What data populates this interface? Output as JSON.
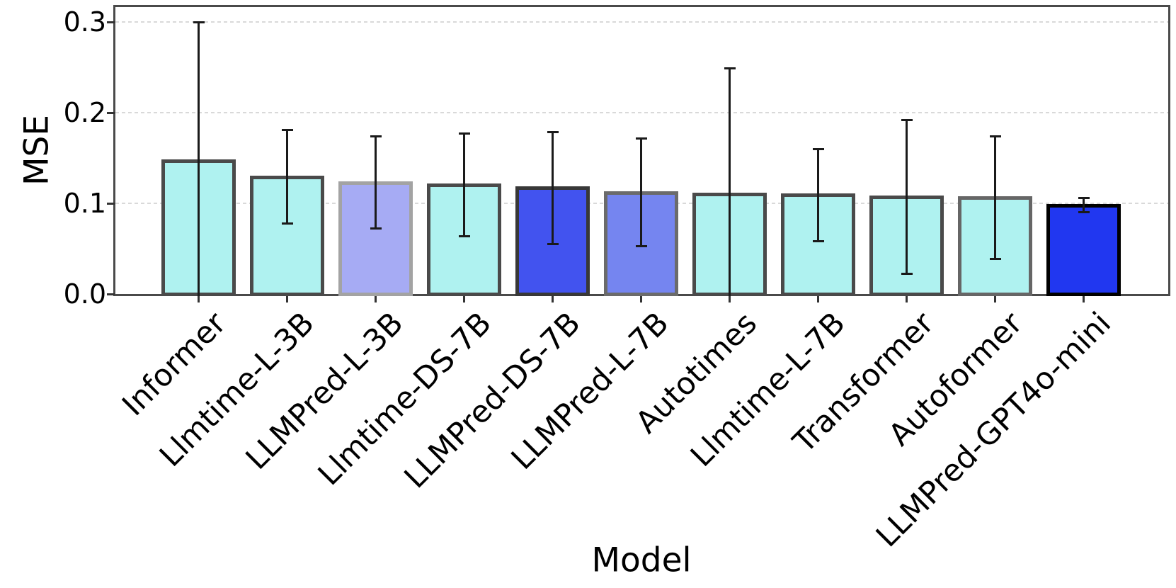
{
  "chart_data": {
    "type": "bar",
    "title": "",
    "xlabel": "Model",
    "ylabel": "MSE",
    "ylim": [
      0,
      0.316
    ],
    "yticks": [
      0.0,
      0.1,
      0.2,
      0.3
    ],
    "ytick_labels": [
      "0.0",
      "0.1",
      "0.2",
      "0.3"
    ],
    "grid": "horizontal-dashed",
    "legend": "none",
    "categories": [
      "Informer",
      "Llmtime-L-3B",
      "LLMPred-L-3B",
      "Llmtime-DS-7B",
      "LLMPred-DS-7B",
      "LLMPred-L-7B",
      "Autotimes",
      "Llmtime-L-7B",
      "Transformer",
      "Autoformer",
      "LLMPred-GPT4o-mini"
    ],
    "values": [
      0.147,
      0.129,
      0.123,
      0.12,
      0.117,
      0.112,
      0.11,
      0.109,
      0.107,
      0.106,
      0.098
    ],
    "errors": [
      0.153,
      0.052,
      0.051,
      0.057,
      0.062,
      0.06,
      0.139,
      0.051,
      0.085,
      0.068,
      0.008
    ],
    "bar_colors": [
      "#AFF2F0",
      "#AFF2F0",
      "#A6ABF4",
      "#AFF2F0",
      "#4253EF",
      "#7585F0",
      "#AFF2F0",
      "#AFF2F0",
      "#AFF2F0",
      "#AFF2F0",
      "#2137F0"
    ],
    "edge_colors": [
      "#4A4A4A",
      "#4A4A4A",
      "#A3A3A3",
      "#4A4A4A",
      "#383838",
      "#6B6B6B",
      "#4A4A4A",
      "#4A4A4A",
      "#4A4A4A",
      "#666666",
      "#000000"
    ],
    "error_color": "#1A1A1A"
  }
}
